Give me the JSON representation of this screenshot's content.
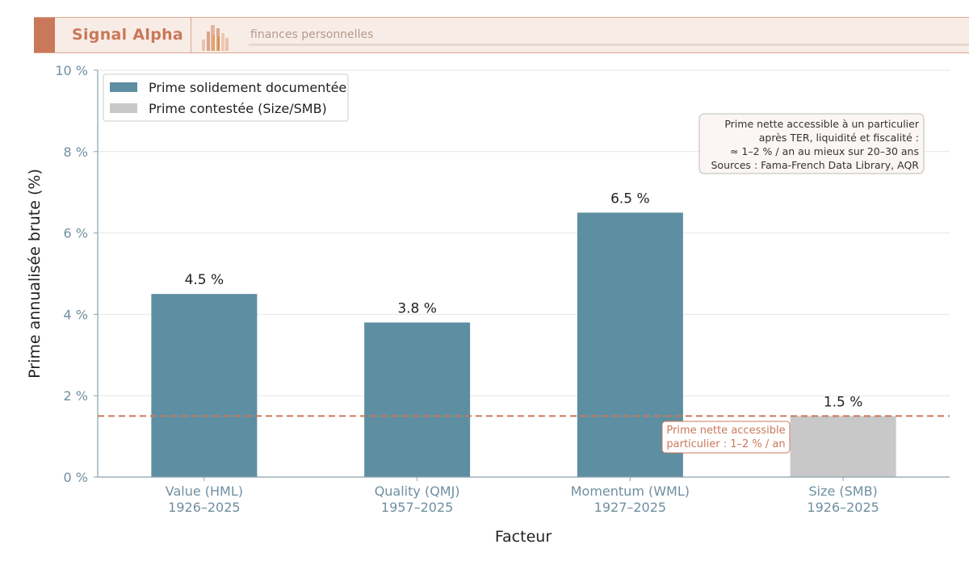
{
  "header": {
    "brand": "Signal Alpha",
    "tagline": "finances personnelles",
    "colors": {
      "accent": "#c9785a",
      "background": "#f8ece6"
    },
    "logo_icon": "bar-chart-logo-icon"
  },
  "chart_data": {
    "type": "bar",
    "categories": [
      "Value (HML)\n1926–2025",
      "Quality (QMJ)\n1957–2025",
      "Momentum (WML)\n1927–2025",
      "Size (SMB)\n1926–2025"
    ],
    "values": [
      4.5,
      3.8,
      6.5,
      1.5
    ],
    "value_labels": [
      "4.5 %",
      "3.8 %",
      "6.5 %",
      "1.5 %"
    ],
    "bar_series": [
      0,
      0,
      0,
      1
    ],
    "series": [
      {
        "name": "Prime solidement documentée",
        "color": "#5e8ea1"
      },
      {
        "name": "Prime contestée (Size/SMB)",
        "color": "#c8c8c8"
      }
    ],
    "xlabel": "Facteur",
    "ylabel": "Prime annualisée brute (%)",
    "ylim": [
      0,
      10
    ],
    "yticks": [
      0,
      2,
      4,
      6,
      8,
      10
    ],
    "ytick_labels": [
      "0 %",
      "2 %",
      "4 %",
      "6 %",
      "8 %",
      "10 %"
    ],
    "grid": true,
    "legend_position": "top-left",
    "reference_line": {
      "value": 1.5,
      "color": "#c9785a",
      "label": "Prime nette accessible\nparticulier : 1–2 % / an"
    },
    "annotation": {
      "position": "top-right",
      "lines": [
        "Prime nette accessible à un particulier",
        "après TER, liquidité et fiscalité :",
        "≈ 1–2 % / an au mieux sur 20–30 ans",
        "Sources : Fama-French Data Library, AQR"
      ]
    }
  }
}
